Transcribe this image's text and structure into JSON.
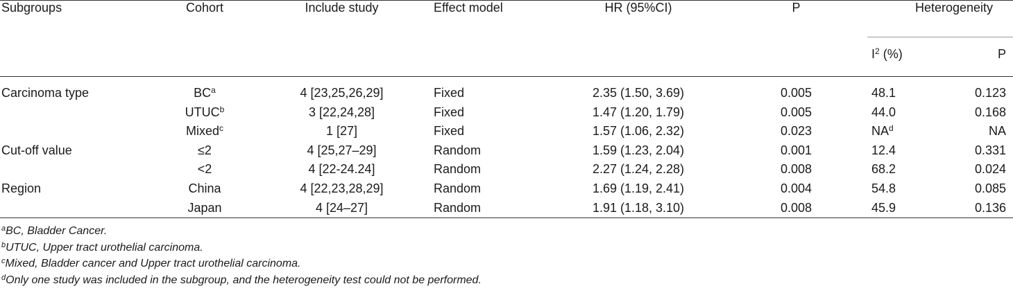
{
  "headers": {
    "subgroups": "Subgroups",
    "cohort": "Cohort",
    "include_study": "Include study",
    "effect_model": "Effect model",
    "hr": "HR (95%CI)",
    "p": "P",
    "heterogeneity": "Heterogeneity",
    "i2_base": "I",
    "i2_sup": "2",
    "i2_rest": " (%)",
    "het_p": "P"
  },
  "rows": [
    {
      "group": "Carcinoma type",
      "cohort": "BC",
      "cohort_sup": "a",
      "study": "4 [23,25,26,29]",
      "model": "Fixed",
      "hr": "2.35 (1.50, 3.69)",
      "p": "0.005",
      "i2": "48.1",
      "i2_sup": "",
      "hp": "0.123"
    },
    {
      "group": "",
      "cohort": "UTUC",
      "cohort_sup": "b",
      "study": "3 [22,24,28]",
      "model": "Fixed",
      "hr": "1.47 (1.20, 1.79)",
      "p": "0.005",
      "i2": "44.0",
      "i2_sup": "",
      "hp": "0.168"
    },
    {
      "group": "",
      "cohort": "Mixed",
      "cohort_sup": "c",
      "study": "1 [27]",
      "model": "Fixed",
      "hr": "1.57 (1.06, 2.32)",
      "p": "0.023",
      "i2": "NA",
      "i2_sup": "d",
      "hp": "NA"
    },
    {
      "group": "Cut-off value",
      "cohort": "≤2",
      "cohort_sup": "",
      "study": "4 [25,27–29]",
      "model": "Random",
      "hr": "1.59 (1.23, 2.04)",
      "p": "0.001",
      "i2": "12.4",
      "i2_sup": "",
      "hp": "0.331"
    },
    {
      "group": "",
      "cohort": "<2",
      "cohort_sup": "",
      "study": "4 [22-24.24]",
      "model": "Random",
      "hr": "2.27 (1.24, 2.28)",
      "p": "0.008",
      "i2": "68.2",
      "i2_sup": "",
      "hp": "0.024"
    },
    {
      "group": "Region",
      "cohort": "China",
      "cohort_sup": "",
      "study": "4 [22,23,28,29]",
      "model": "Random",
      "hr": "1.69 (1.19, 2.41)",
      "p": "0.004",
      "i2": "54.8",
      "i2_sup": "",
      "hp": "0.085"
    },
    {
      "group": "",
      "cohort": "Japan",
      "cohort_sup": "",
      "study": "4 [24–27]",
      "model": "Random",
      "hr": "1.91 (1.18, 3.10)",
      "p": "0.008",
      "i2": "45.9",
      "i2_sup": "",
      "hp": "0.136"
    }
  ],
  "footnotes": [
    {
      "mark": "a",
      "text": "BC, Bladder Cancer."
    },
    {
      "mark": "b",
      "text": "UTUC, Upper tract urothelial carcinoma."
    },
    {
      "mark": "c",
      "text": "Mixed, Bladder cancer and Upper tract urothelial carcinoma."
    },
    {
      "mark": "d",
      "text": "Only one study was included in the subgroup, and the heterogeneity test could not be performed."
    }
  ]
}
